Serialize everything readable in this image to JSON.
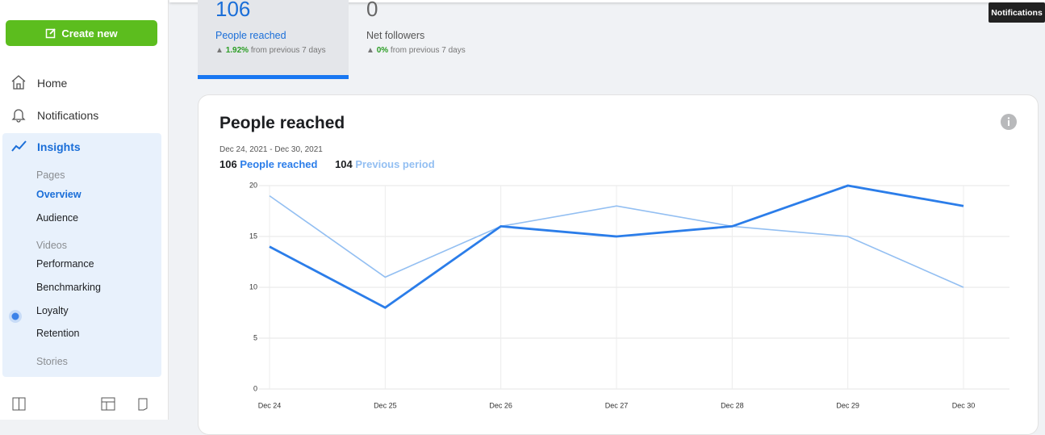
{
  "tooltip": "Notifications",
  "sidebar": {
    "create_button": "Create new",
    "nav": [
      "Home",
      "Notifications",
      "Insights"
    ],
    "sections": [
      {
        "title": "Pages",
        "items": [
          "Overview",
          "Audience"
        ]
      },
      {
        "title": "Videos",
        "items": [
          "Performance",
          "Benchmarking",
          "Loyalty",
          "Retention"
        ]
      },
      {
        "title": "Stories",
        "items": []
      }
    ]
  },
  "tabs": [
    {
      "value": "106",
      "label": "People reached",
      "change": "1.92%",
      "note": "from previous 7 days"
    },
    {
      "value": "0",
      "label": "Net followers",
      "change": "0%",
      "note": "from previous 7 days"
    }
  ],
  "chart_data": {
    "type": "line",
    "title": "People reached",
    "subtitle": "Dec 24, 2021 - Dec 30, 2021",
    "legend_totals": [
      "106",
      "104"
    ],
    "categories": [
      "Dec 24",
      "Dec 25",
      "Dec 26",
      "Dec 27",
      "Dec 28",
      "Dec 29",
      "Dec 30"
    ],
    "series": [
      {
        "name": "People reached",
        "color": "#2b7de9",
        "values": [
          14,
          8,
          16,
          15,
          16,
          20,
          18
        ]
      },
      {
        "name": "Previous period",
        "color": "#93bff2",
        "values": [
          19,
          11,
          16,
          18,
          16,
          15,
          10
        ]
      }
    ],
    "ylim": [
      0,
      20
    ],
    "yticks": [
      0,
      5,
      10,
      15,
      20
    ],
    "grid": true
  }
}
